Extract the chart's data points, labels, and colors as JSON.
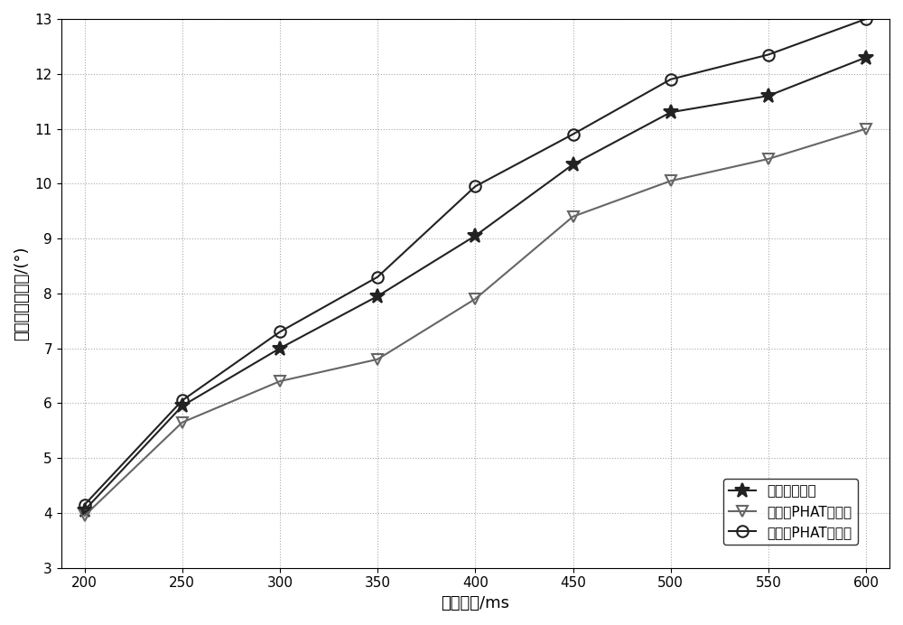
{
  "x": [
    200,
    250,
    300,
    350,
    400,
    450,
    500,
    550,
    600
  ],
  "series": [
    {
      "label": "基本伪声强法",
      "values": [
        4.05,
        5.95,
        7.0,
        7.95,
        9.05,
        10.35,
        11.3,
        11.6,
        12.3
      ],
      "color": "#222222",
      "marker": "*",
      "markersize": 12,
      "linewidth": 1.5,
      "markerfacecolor": "#222222",
      "markeredgecolor": "#222222"
    },
    {
      "label": "时频域PHAT加权法",
      "values": [
        3.95,
        5.65,
        6.4,
        6.8,
        7.9,
        9.4,
        10.05,
        10.45,
        11.0
      ],
      "color": "#666666",
      "marker": "v",
      "markersize": 9,
      "linewidth": 1.5,
      "markerfacecolor": "none",
      "markeredgecolor": "#666666"
    },
    {
      "label": "谐波域PHAT加权法",
      "values": [
        4.15,
        6.05,
        7.3,
        8.3,
        9.95,
        10.9,
        11.9,
        12.35,
        13.0
      ],
      "color": "#222222",
      "marker": "o",
      "markersize": 9,
      "linewidth": 1.5,
      "markerfacecolor": "none",
      "markeredgecolor": "#222222"
    }
  ],
  "xlabel": "混响时间/ms",
  "ylabel": "平均均方根误差/(°)",
  "xlim": [
    188,
    612
  ],
  "ylim": [
    3,
    13
  ],
  "xticks": [
    200,
    250,
    300,
    350,
    400,
    450,
    500,
    550,
    600
  ],
  "yticks": [
    3,
    4,
    5,
    6,
    7,
    8,
    9,
    10,
    11,
    12,
    13
  ],
  "grid_color": "#aaaaaa",
  "grid_linestyle": ":",
  "background_color": "#ffffff"
}
